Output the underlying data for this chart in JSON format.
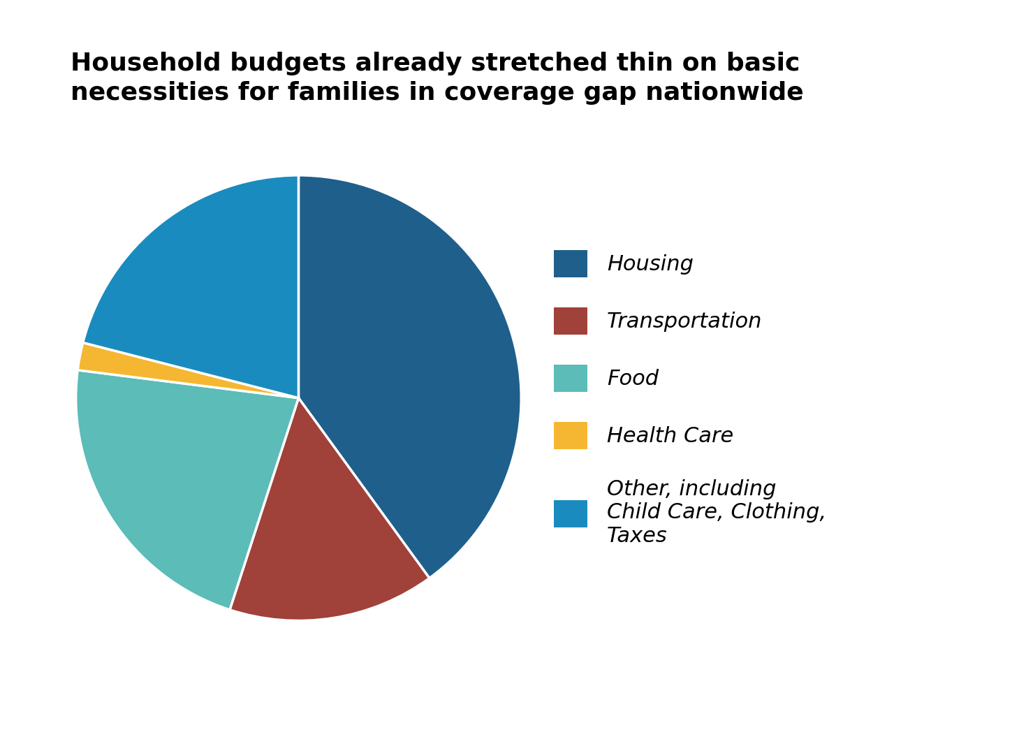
{
  "title": "Household budgets already stretched thin on basic\nnecessities for families in coverage gap nationwide",
  "labels": [
    "Housing",
    "Transportation",
    "Food",
    "Health Care",
    "Other, including\nChild Care, Clothing,\nTaxes"
  ],
  "values": [
    40,
    15,
    22,
    2,
    21
  ],
  "colors": [
    "#1F5F8B",
    "#A0413A",
    "#5BBCB8",
    "#F5B731",
    "#1A8BBE"
  ],
  "wedge_edge_color": "white",
  "wedge_linewidth": 2.5,
  "background_color": "#ffffff",
  "title_fontsize": 26,
  "title_fontweight": "bold",
  "legend_fontsize": 22,
  "startangle": 90
}
